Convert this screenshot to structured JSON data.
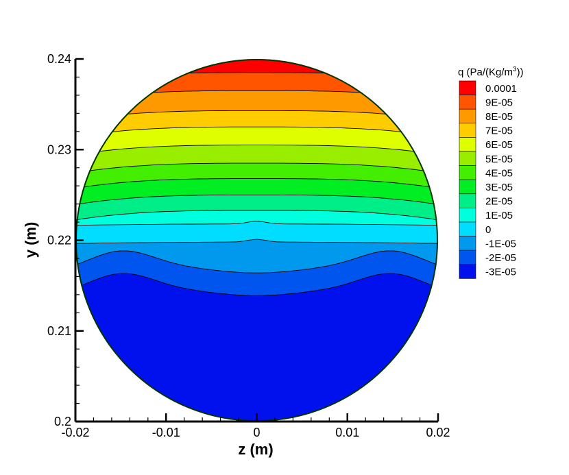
{
  "chart_data": {
    "type": "heatmap",
    "title": "",
    "xlabel": "z  (m)",
    "ylabel": "y  (m)",
    "xlim": [
      -0.02,
      0.02
    ],
    "ylim": [
      0.2,
      0.24
    ],
    "x_ticks": [
      -0.02,
      -0.01,
      0,
      0.01,
      0.02
    ],
    "x_tick_labels": [
      "-0.02",
      "-0.01",
      "0",
      "0.01",
      "0.02"
    ],
    "y_ticks": [
      0.2,
      0.21,
      0.22,
      0.23,
      0.24
    ],
    "y_tick_labels": [
      "0.2",
      "0.21",
      "0.22",
      "0.23",
      "0.24"
    ],
    "domain": {
      "shape": "circle",
      "center_z": 0,
      "center_y": 0.22,
      "radius": 0.02
    },
    "legend": {
      "title": "q  (Pa/(Kg/m",
      "title_superscript": "3",
      "title_suffix": "))",
      "placement": "right",
      "levels": [
        {
          "label": "0.0001",
          "value": 0.0001,
          "color": "#ff0000"
        },
        {
          "label": "9E-05",
          "value": 9e-05,
          "color": "#ff5500"
        },
        {
          "label": "8E-05",
          "value": 8e-05,
          "color": "#ff9900"
        },
        {
          "label": "7E-05",
          "value": 7e-05,
          "color": "#ffcc00"
        },
        {
          "label": "6E-05",
          "value": 6e-05,
          "color": "#ddff00"
        },
        {
          "label": "5E-05",
          "value": 5e-05,
          "color": "#99ee00"
        },
        {
          "label": "4E-05",
          "value": 4e-05,
          "color": "#44ee00"
        },
        {
          "label": "3E-05",
          "value": 3e-05,
          "color": "#00ee22"
        },
        {
          "label": "2E-05",
          "value": 2e-05,
          "color": "#00ee88"
        },
        {
          "label": "1E-05",
          "value": 1e-05,
          "color": "#00ffdd"
        },
        {
          "label": "0",
          "value": 0,
          "color": "#00ddff"
        },
        {
          "label": "-1E-05",
          "value": -1e-05,
          "color": "#0099ee"
        },
        {
          "label": "-2E-05",
          "value": -2e-05,
          "color": "#0055ee"
        },
        {
          "label": "-3E-05",
          "value": -3e-05,
          "color": "#0011ee"
        }
      ]
    },
    "contour_y_levels": [
      0.2385,
      0.2365,
      0.2343,
      0.2325,
      0.2305,
      0.2285,
      0.2268,
      0.225,
      0.2233,
      0.2218,
      0.2198,
      0.2173,
      0.2148
    ],
    "grid": false
  }
}
